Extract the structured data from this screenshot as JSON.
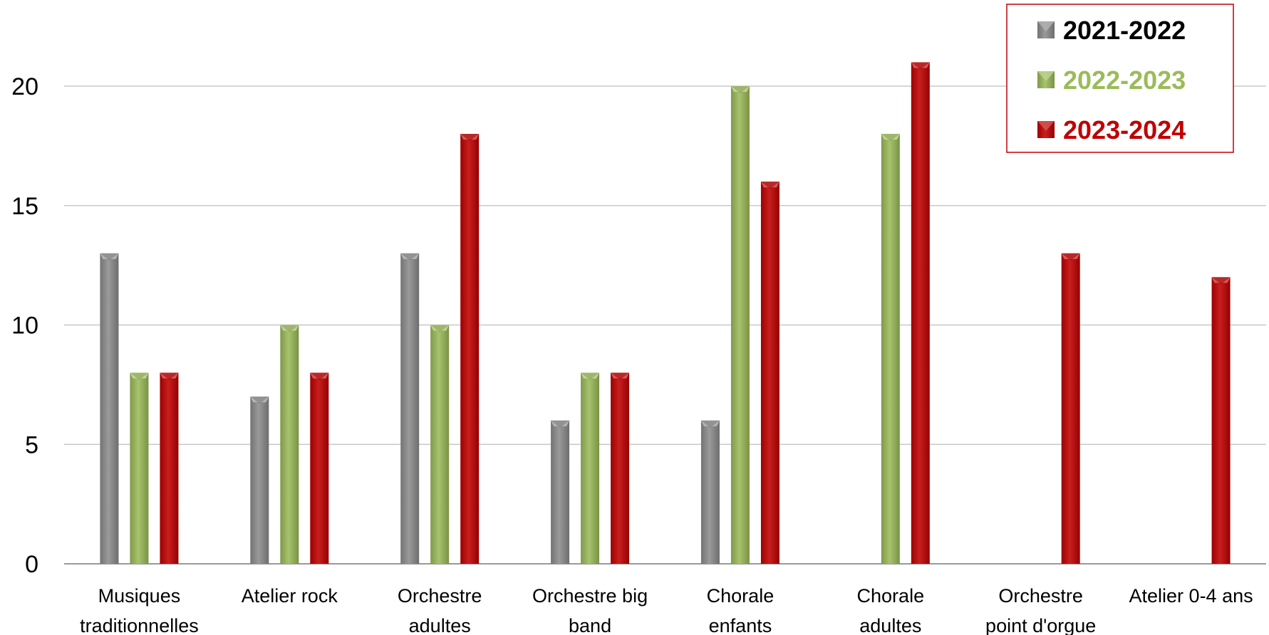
{
  "chart_data": {
    "type": "bar",
    "categories": [
      [
        "Musiques",
        "traditionnelles"
      ],
      [
        "Atelier rock"
      ],
      [
        "Orchestre",
        "adultes"
      ],
      [
        "Orchestre big",
        "band"
      ],
      [
        "Chorale",
        "enfants"
      ],
      [
        "Chorale",
        "adultes"
      ],
      [
        "Orchestre",
        "point d'orgue"
      ],
      [
        "Atelier 0-4 ans"
      ]
    ],
    "series": [
      {
        "name": "2021-2022",
        "color": "#8c8c8c",
        "values": [
          13,
          7,
          13,
          6,
          6,
          null,
          null,
          null
        ]
      },
      {
        "name": "2022-2023",
        "color": "#9bbb59",
        "values": [
          8,
          10,
          10,
          8,
          20,
          18,
          null,
          null
        ]
      },
      {
        "name": "2023-2024",
        "color": "#c00000",
        "values": [
          8,
          8,
          18,
          8,
          16,
          21,
          13,
          12
        ]
      }
    ],
    "yticks": [
      0,
      5,
      10,
      15,
      20
    ],
    "ylim": [
      0,
      23
    ],
    "grid": true,
    "legend_position": "top-right",
    "legend_text_colors": [
      "#000000",
      "#9bbb59",
      "#c00000"
    ],
    "legend_border_color": "#c00000"
  }
}
